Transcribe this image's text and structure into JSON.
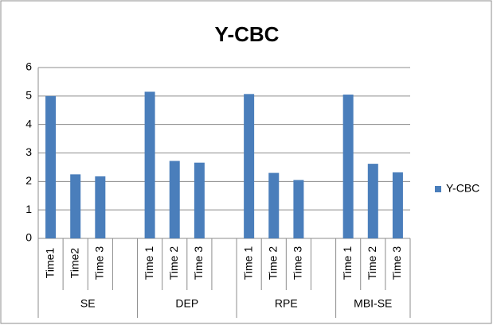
{
  "chart_data": {
    "type": "bar",
    "title": "Y-CBC",
    "groups": [
      {
        "label": "SE",
        "categories": [
          "Time1",
          "Time2",
          "Time 3",
          null
        ]
      },
      {
        "label": "DEP",
        "categories": [
          "Time 1",
          "Time 2",
          "Time 3",
          null
        ]
      },
      {
        "label": "RPE",
        "categories": [
          "Time 1",
          "Time 2",
          "Time 3",
          null
        ]
      },
      {
        "label": "MBI-SE",
        "categories": [
          "Time 1",
          "Time 2",
          "Time 3"
        ]
      }
    ],
    "series": [
      {
        "name": "Y-CBC",
        "color": "#4a7ebb",
        "values": [
          5.0,
          2.25,
          2.18,
          null,
          5.15,
          2.72,
          2.66,
          null,
          5.07,
          2.3,
          2.05,
          null,
          5.05,
          2.62,
          2.32
        ]
      }
    ],
    "ylim": [
      0,
      6
    ],
    "yticks": [
      0,
      1,
      2,
      3,
      4,
      5,
      6
    ],
    "grid": true,
    "legend": "right"
  }
}
